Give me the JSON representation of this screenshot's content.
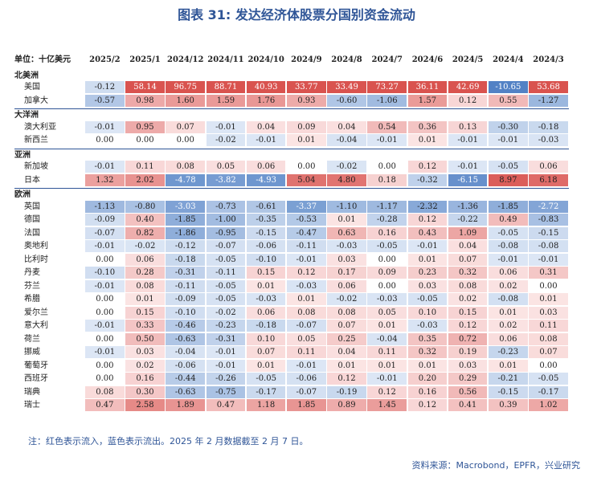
{
  "title": "图表 31: 发达经济体股票分国别资金流动",
  "note": "注：红色表示流入，蓝色表示流出。2025 年 2 月数据截至 2 月 7 日。",
  "source": "资料来源：Macrobond，EPFR，兴业研究",
  "colors": {
    "positive_strong": "#d9534f",
    "positive_light": "#fbe5e5",
    "negative_strong": "#4f7fc4",
    "negative_light": "#dde7f5",
    "title": "#2f5597"
  },
  "chart_data": {
    "type": "heatmap",
    "unit_label": "单位：十亿美元",
    "columns": [
      "2025/2",
      "2025/1",
      "2024/12",
      "2024/11",
      "2024/10",
      "2024/9",
      "2024/8",
      "2024/7",
      "2024/6",
      "2024/5",
      "2024/4",
      "2024/3"
    ],
    "groups": [
      {
        "name": "北美洲",
        "rows": [
          {
            "name": "美国",
            "values": [
              -0.12,
              58.14,
              96.75,
              88.71,
              40.93,
              33.77,
              33.49,
              73.27,
              36.11,
              42.69,
              -10.65,
              53.68
            ]
          },
          {
            "name": "加拿大",
            "values": [
              -0.57,
              0.98,
              1.6,
              1.59,
              1.76,
              0.93,
              -0.6,
              -1.06,
              1.57,
              0.12,
              0.55,
              -1.27
            ]
          }
        ]
      },
      {
        "name": "大洋洲",
        "rows": [
          {
            "name": "澳大利亚",
            "values": [
              -0.01,
              0.95,
              0.07,
              -0.01,
              0.04,
              0.09,
              0.04,
              0.54,
              0.36,
              0.13,
              -0.3,
              -0.18
            ]
          },
          {
            "name": "新西兰",
            "values": [
              0.0,
              0.0,
              0.0,
              -0.02,
              -0.01,
              0.01,
              -0.04,
              -0.01,
              0.01,
              -0.01,
              -0.01,
              -0.03
            ]
          }
        ]
      },
      {
        "name": "亚洲",
        "rows": [
          {
            "name": "新加坡",
            "values": [
              -0.01,
              0.11,
              0.08,
              0.05,
              0.06,
              0.0,
              -0.02,
              0.0,
              0.12,
              -0.01,
              -0.05,
              0.06
            ]
          },
          {
            "name": "日本",
            "values": [
              1.32,
              2.02,
              -4.78,
              -3.82,
              -4.93,
              5.04,
              4.8,
              0.18,
              -0.32,
              -6.15,
              8.97,
              6.18
            ]
          }
        ]
      },
      {
        "name": "欧洲",
        "rows": [
          {
            "name": "英国",
            "values": [
              -1.13,
              -0.8,
              -3.03,
              -0.73,
              -0.61,
              -3.37,
              -1.1,
              -1.17,
              -2.32,
              -1.36,
              -1.85,
              -2.72
            ]
          },
          {
            "name": "德国",
            "values": [
              -0.09,
              0.4,
              -1.85,
              -1.0,
              -0.35,
              -0.53,
              0.01,
              -0.28,
              0.12,
              -0.22,
              0.49,
              -0.83
            ]
          },
          {
            "name": "法国",
            "values": [
              -0.07,
              0.82,
              -1.86,
              -0.95,
              -0.15,
              -0.47,
              0.63,
              0.16,
              0.43,
              1.09,
              -0.05,
              -0.15
            ]
          },
          {
            "name": "奥地利",
            "values": [
              -0.01,
              -0.02,
              -0.12,
              -0.07,
              -0.06,
              -0.11,
              -0.03,
              -0.05,
              -0.01,
              0.04,
              -0.08,
              -0.08
            ]
          },
          {
            "name": "比利时",
            "values": [
              0.0,
              0.06,
              -0.18,
              -0.05,
              -0.1,
              -0.01,
              0.03,
              0.0,
              0.01,
              0.07,
              -0.01,
              -0.01
            ]
          },
          {
            "name": "丹麦",
            "values": [
              -0.1,
              0.28,
              -0.31,
              -0.11,
              0.15,
              0.12,
              0.17,
              0.09,
              0.23,
              0.32,
              0.06,
              0.31
            ]
          },
          {
            "name": "芬兰",
            "values": [
              -0.01,
              0.08,
              -0.11,
              -0.05,
              0.01,
              -0.03,
              0.06,
              0.0,
              0.03,
              0.08,
              0.02,
              0.0
            ]
          },
          {
            "name": "希腊",
            "values": [
              0.0,
              0.01,
              -0.09,
              -0.05,
              -0.03,
              0.01,
              -0.02,
              -0.03,
              -0.05,
              0.02,
              -0.08,
              0.01
            ]
          },
          {
            "name": "爱尔兰",
            "values": [
              0.0,
              0.15,
              -0.1,
              -0.02,
              0.06,
              0.08,
              0.08,
              0.05,
              0.1,
              0.15,
              0.01,
              0.03
            ]
          },
          {
            "name": "意大利",
            "values": [
              -0.01,
              0.33,
              -0.46,
              -0.23,
              -0.18,
              -0.07,
              0.07,
              0.01,
              -0.03,
              0.12,
              0.02,
              0.11
            ]
          },
          {
            "name": "荷兰",
            "values": [
              0.0,
              0.5,
              -0.63,
              -0.31,
              0.1,
              0.05,
              0.25,
              -0.04,
              0.35,
              0.72,
              0.06,
              0.08
            ]
          },
          {
            "name": "挪威",
            "values": [
              -0.01,
              0.03,
              -0.04,
              -0.01,
              0.07,
              0.11,
              0.04,
              0.11,
              0.32,
              0.19,
              -0.23,
              0.07
            ]
          },
          {
            "name": "葡萄牙",
            "values": [
              0.0,
              0.02,
              -0.06,
              -0.01,
              0.01,
              -0.01,
              0.01,
              0.01,
              0.01,
              0.03,
              0.01,
              0.0
            ]
          },
          {
            "name": "西班牙",
            "values": [
              0.0,
              0.16,
              -0.44,
              -0.26,
              -0.05,
              -0.06,
              0.12,
              -0.01,
              0.2,
              0.29,
              -0.21,
              -0.05
            ]
          },
          {
            "name": "瑞典",
            "values": [
              0.08,
              0.3,
              -0.63,
              -0.75,
              -0.17,
              -0.07,
              -0.19,
              0.12,
              0.16,
              0.56,
              -0.15,
              -0.17
            ]
          },
          {
            "name": "瑞士",
            "values": [
              0.47,
              2.58,
              1.89,
              0.47,
              1.18,
              1.85,
              0.89,
              1.45,
              0.12,
              0.41,
              0.39,
              1.02
            ]
          }
        ]
      }
    ]
  }
}
